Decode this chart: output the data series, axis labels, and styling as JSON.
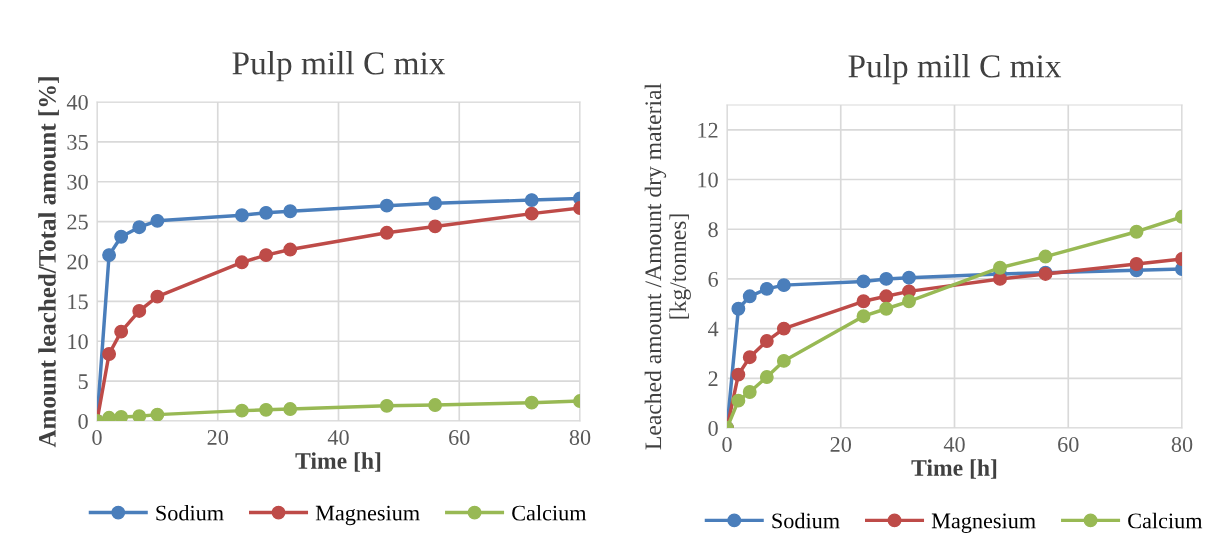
{
  "chart_data": [
    {
      "type": "line",
      "title": "Pulp mill C mix",
      "xlabel": "Time [h]",
      "ylabel": "Amount leached/Total amount [%]",
      "x": [
        0,
        2,
        4,
        7,
        10,
        24,
        28,
        32,
        48,
        56,
        72,
        80
      ],
      "xlim": [
        0,
        80
      ],
      "xticks": [
        0,
        20,
        40,
        60,
        80
      ],
      "ylim": [
        0,
        40
      ],
      "yticks": [
        0,
        5,
        10,
        15,
        20,
        25,
        30,
        35,
        40
      ],
      "grid": true,
      "legend": "bottom",
      "marker": "circle",
      "line_style": "solid",
      "series": [
        {
          "name": "Sodium",
          "color": "#4a7ebb",
          "values": [
            0,
            20.8,
            23.1,
            24.3,
            25.1,
            25.8,
            26.1,
            26.3,
            27.0,
            27.3,
            27.7,
            27.9
          ]
        },
        {
          "name": "Magnesium",
          "color": "#be4b48",
          "values": [
            0,
            8.4,
            11.2,
            13.8,
            15.6,
            19.9,
            20.8,
            21.5,
            23.6,
            24.4,
            26.0,
            26.7
          ]
        },
        {
          "name": "Calcium",
          "color": "#98b954",
          "values": [
            0,
            0.4,
            0.5,
            0.6,
            0.8,
            1.3,
            1.4,
            1.5,
            1.9,
            2.0,
            2.3,
            2.5
          ]
        }
      ]
    },
    {
      "type": "line",
      "title": "Pulp mill C mix",
      "xlabel": "Time [h]",
      "ylabel": "Leached amount /Amount dry material\n[kg/tonnes]",
      "x": [
        0,
        2,
        4,
        7,
        10,
        24,
        28,
        32,
        48,
        56,
        72,
        80
      ],
      "xlim": [
        0,
        80
      ],
      "xticks": [
        0,
        20,
        40,
        60,
        80
      ],
      "ylim": [
        0,
        13
      ],
      "yticks": [
        0,
        2,
        4,
        6,
        8,
        10,
        12
      ],
      "grid": true,
      "legend": "bottom",
      "marker": "circle",
      "line_style": "solid",
      "series": [
        {
          "name": "Sodium",
          "color": "#4a7ebb",
          "values": [
            0,
            4.8,
            5.3,
            5.6,
            5.75,
            5.9,
            6.0,
            6.05,
            6.2,
            6.25,
            6.35,
            6.4
          ]
        },
        {
          "name": "Magnesium",
          "color": "#be4b48",
          "values": [
            0,
            2.15,
            2.85,
            3.5,
            4.0,
            5.1,
            5.3,
            5.5,
            6.0,
            6.2,
            6.6,
            6.8
          ]
        },
        {
          "name": "Calcium",
          "color": "#98b954",
          "values": [
            0,
            1.1,
            1.45,
            2.05,
            2.7,
            4.5,
            4.8,
            5.1,
            6.45,
            6.9,
            7.9,
            8.5
          ]
        }
      ]
    }
  ]
}
